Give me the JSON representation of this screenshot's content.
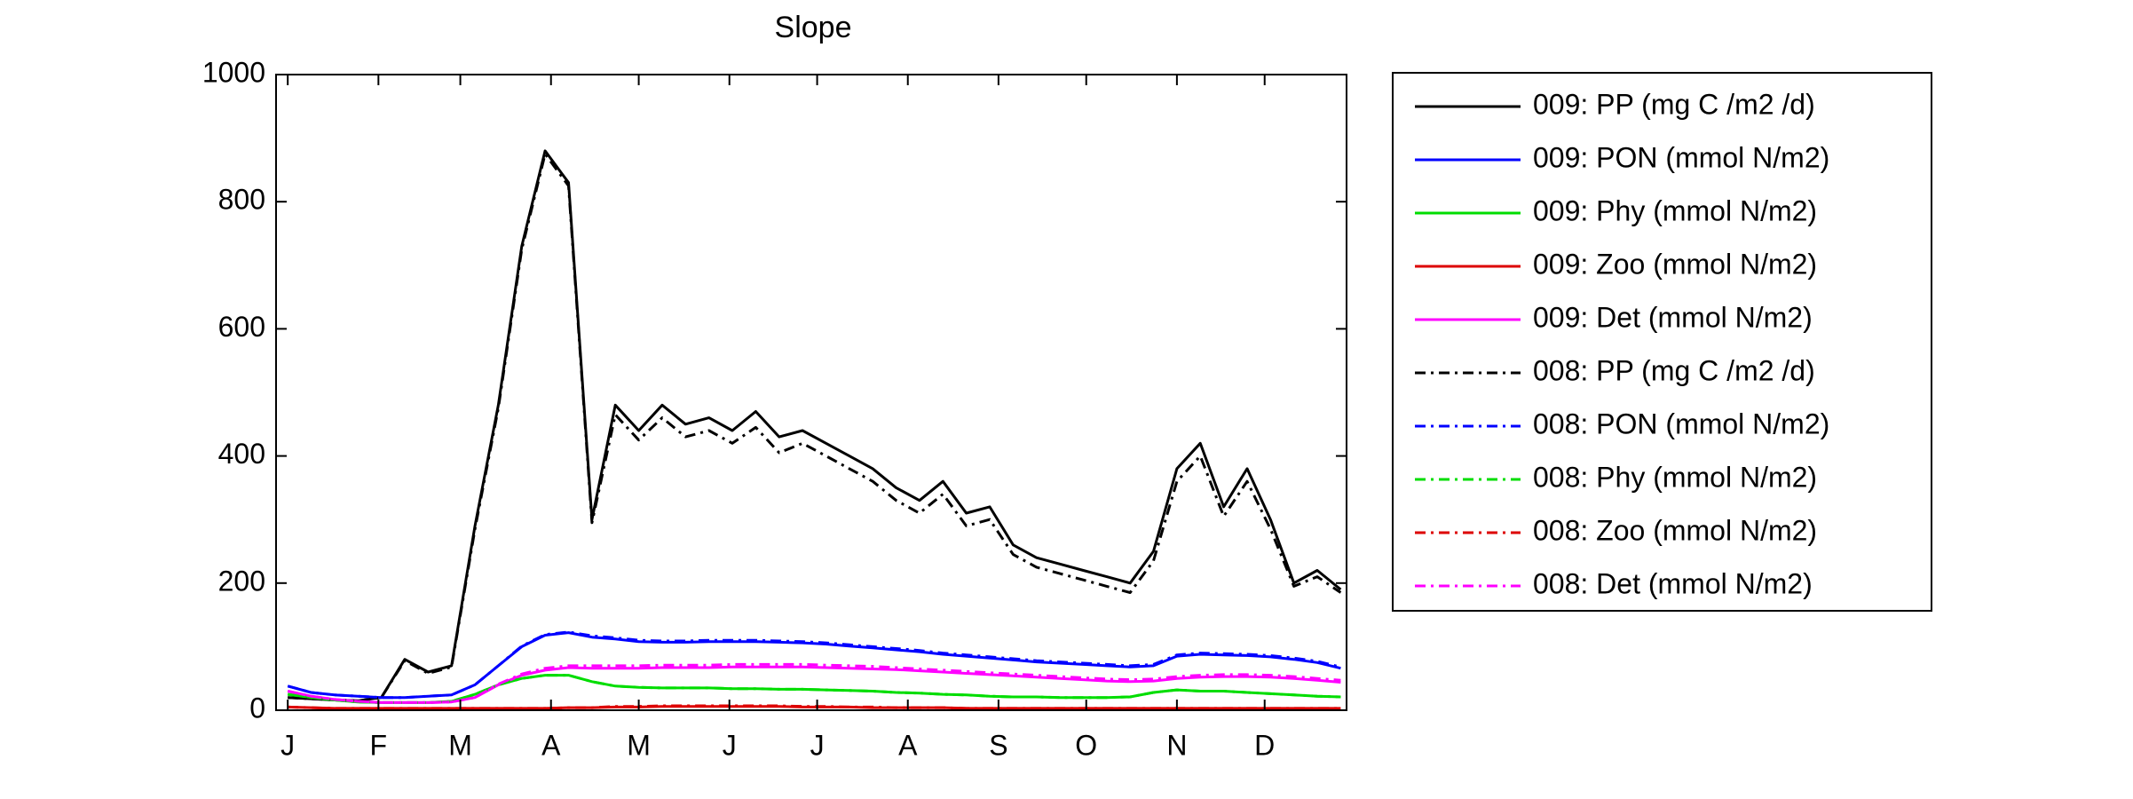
{
  "chart_data": {
    "type": "line",
    "title": "Slope",
    "x": [
      1,
      9,
      17,
      25,
      33,
      41,
      49,
      57,
      65,
      73,
      81,
      89,
      97,
      105,
      113,
      121,
      129,
      137,
      145,
      153,
      161,
      169,
      177,
      185,
      193,
      201,
      209,
      217,
      225,
      233,
      241,
      249,
      257,
      265,
      273,
      281,
      289,
      297,
      305,
      313,
      321,
      329,
      337,
      345,
      353,
      361
    ],
    "xlim": [
      -3,
      363
    ],
    "xticks": [
      {
        "value": 1,
        "label": "J"
      },
      {
        "value": 32,
        "label": "F"
      },
      {
        "value": 60,
        "label": "M"
      },
      {
        "value": 91,
        "label": "A"
      },
      {
        "value": 121,
        "label": "M"
      },
      {
        "value": 152,
        "label": "J"
      },
      {
        "value": 182,
        "label": "J"
      },
      {
        "value": 213,
        "label": "A"
      },
      {
        "value": 244,
        "label": "S"
      },
      {
        "value": 274,
        "label": "O"
      },
      {
        "value": 305,
        "label": "N"
      },
      {
        "value": 335,
        "label": "D"
      }
    ],
    "ylim": [
      0,
      1000
    ],
    "yticks": [
      0,
      200,
      400,
      600,
      800,
      1000
    ],
    "grid": false,
    "legend": "outside right",
    "series": [
      {
        "name": "009: PP (mg C /m2 /d)",
        "color": "#000000",
        "dash": false,
        "values": [
          20,
          18,
          16,
          15,
          20,
          80,
          60,
          70,
          290,
          480,
          730,
          880,
          830,
          300,
          480,
          440,
          480,
          450,
          460,
          440,
          470,
          430,
          440,
          420,
          400,
          380,
          350,
          330,
          360,
          310,
          320,
          260,
          240,
          230,
          220,
          210,
          200,
          250,
          380,
          420,
          320,
          380,
          300,
          200,
          220,
          190
        ]
      },
      {
        "name": "009: PON (mmol N/m2)",
        "color": "#0000ff",
        "dash": false,
        "values": [
          38,
          28,
          24,
          22,
          20,
          20,
          22,
          24,
          40,
          70,
          100,
          118,
          122,
          115,
          112,
          108,
          107,
          107,
          108,
          108,
          108,
          107,
          106,
          104,
          101,
          98,
          95,
          92,
          88,
          85,
          82,
          79,
          76,
          74,
          72,
          70,
          68,
          70,
          85,
          88,
          87,
          86,
          84,
          80,
          75,
          66
        ]
      },
      {
        "name": "009: Phy (mmol N/m2)",
        "color": "#00dd00",
        "dash": false,
        "values": [
          25,
          20,
          16,
          13,
          12,
          12,
          12,
          14,
          25,
          40,
          50,
          55,
          55,
          45,
          38,
          36,
          35,
          35,
          35,
          34,
          34,
          33,
          33,
          32,
          31,
          30,
          28,
          27,
          25,
          24,
          22,
          21,
          21,
          20,
          20,
          20,
          21,
          28,
          32,
          30,
          30,
          28,
          26,
          24,
          22,
          21
        ]
      },
      {
        "name": "009: Zoo (mmol N/m2)",
        "color": "#dd0000",
        "dash": false,
        "values": [
          5,
          4,
          3,
          3,
          3,
          3,
          3,
          3,
          3,
          3,
          3,
          3,
          4,
          4,
          5,
          5,
          6,
          6,
          6,
          6,
          6,
          6,
          5,
          5,
          5,
          4,
          4,
          4,
          4,
          3,
          3,
          3,
          3,
          3,
          3,
          3,
          3,
          3,
          3,
          3,
          3,
          3,
          3,
          3,
          3,
          3
        ]
      },
      {
        "name": "009: Det (mmol N/m2)",
        "color": "#ff00ff",
        "dash": false,
        "values": [
          30,
          22,
          17,
          14,
          12,
          12,
          12,
          13,
          20,
          40,
          55,
          63,
          67,
          66,
          66,
          66,
          67,
          67,
          67,
          68,
          68,
          68,
          68,
          67,
          66,
          65,
          64,
          62,
          60,
          58,
          56,
          54,
          52,
          50,
          48,
          46,
          45,
          46,
          50,
          52,
          53,
          53,
          52,
          50,
          47,
          44
        ]
      },
      {
        "name": "008: PP (mg C /m2 /d)",
        "color": "#000000",
        "dash": true,
        "values": [
          20,
          18,
          16,
          15,
          20,
          78,
          58,
          68,
          285,
          475,
          725,
          875,
          825,
          295,
          465,
          425,
          460,
          430,
          440,
          420,
          445,
          405,
          420,
          400,
          380,
          360,
          330,
          310,
          340,
          290,
          300,
          245,
          225,
          215,
          205,
          195,
          185,
          235,
          360,
          400,
          305,
          360,
          285,
          195,
          210,
          185
        ]
      },
      {
        "name": "008: PON (mmol N/m2)",
        "color": "#0000ff",
        "dash": true,
        "values": [
          38,
          28,
          24,
          22,
          20,
          20,
          22,
          24,
          40,
          70,
          101,
          119,
          123,
          117,
          114,
          110,
          109,
          109,
          110,
          110,
          110,
          109,
          108,
          106,
          103,
          100,
          97,
          94,
          90,
          87,
          84,
          81,
          78,
          76,
          74,
          72,
          70,
          72,
          87,
          90,
          89,
          88,
          86,
          82,
          77,
          68
        ]
      },
      {
        "name": "008: Phy (mmol N/m2)",
        "color": "#00dd00",
        "dash": true,
        "values": [
          25,
          20,
          16,
          13,
          12,
          12,
          12,
          14,
          25,
          40,
          50,
          55,
          55,
          45,
          38,
          36,
          35,
          35,
          35,
          34,
          34,
          33,
          33,
          32,
          31,
          30,
          28,
          27,
          25,
          24,
          22,
          21,
          21,
          20,
          20,
          20,
          21,
          28,
          32,
          30,
          30,
          28,
          26,
          24,
          22,
          21
        ]
      },
      {
        "name": "008: Zoo (mmol N/m2)",
        "color": "#dd0000",
        "dash": true,
        "values": [
          5,
          4,
          3,
          3,
          3,
          3,
          3,
          3,
          3,
          3,
          3,
          3,
          4,
          4,
          6,
          6,
          7,
          7,
          7,
          7,
          7,
          7,
          6,
          6,
          5,
          5,
          4,
          4,
          4,
          3,
          3,
          3,
          3,
          3,
          3,
          3,
          3,
          3,
          3,
          3,
          3,
          3,
          3,
          3,
          3,
          3
        ]
      },
      {
        "name": "008: Det (mmol N/m2)",
        "color": "#ff00ff",
        "dash": true,
        "values": [
          30,
          22,
          17,
          14,
          12,
          12,
          12,
          13,
          20,
          41,
          57,
          66,
          70,
          70,
          70,
          70,
          71,
          71,
          71,
          72,
          72,
          72,
          72,
          71,
          70,
          69,
          67,
          65,
          63,
          61,
          59,
          57,
          55,
          53,
          51,
          49,
          48,
          49,
          53,
          55,
          56,
          56,
          55,
          53,
          50,
          47
        ]
      }
    ]
  }
}
